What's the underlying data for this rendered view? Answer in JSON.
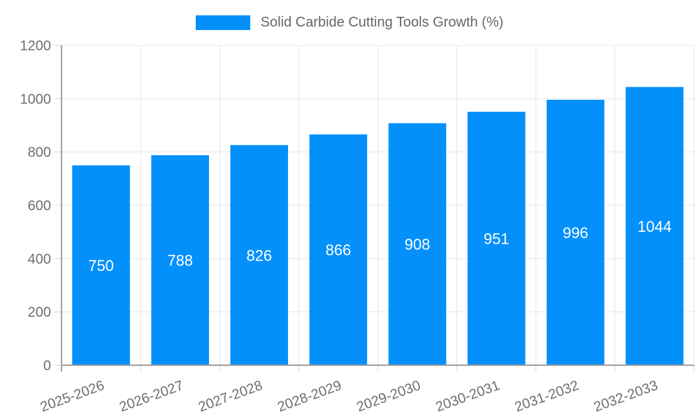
{
  "legend": {
    "label": "Solid Carbide Cutting Tools Growth (%)"
  },
  "chart_data": {
    "type": "bar",
    "title": "Solid Carbide Cutting Tools Growth (%)",
    "categories": [
      "2025-2026",
      "2026-2027",
      "2027-2028",
      "2028-2029",
      "2029-2030",
      "2030-2031",
      "2031-2032",
      "2032-2033"
    ],
    "values": [
      750,
      788,
      826,
      866,
      908,
      951,
      996,
      1044
    ],
    "xlabel": "",
    "ylabel": "",
    "ylim": [
      0,
      1200
    ],
    "yticks": [
      0,
      200,
      400,
      600,
      800,
      1000,
      1200
    ],
    "grid": true,
    "legend_position": "top",
    "bar_color": "#0490fa",
    "value_label_color": "#ffffff",
    "axis_label_color": "#6e6e6e",
    "gridline_color": "#e6e6e6",
    "tick_color": "#d4d4d4",
    "axis_line_color": "#a0a0a0"
  }
}
